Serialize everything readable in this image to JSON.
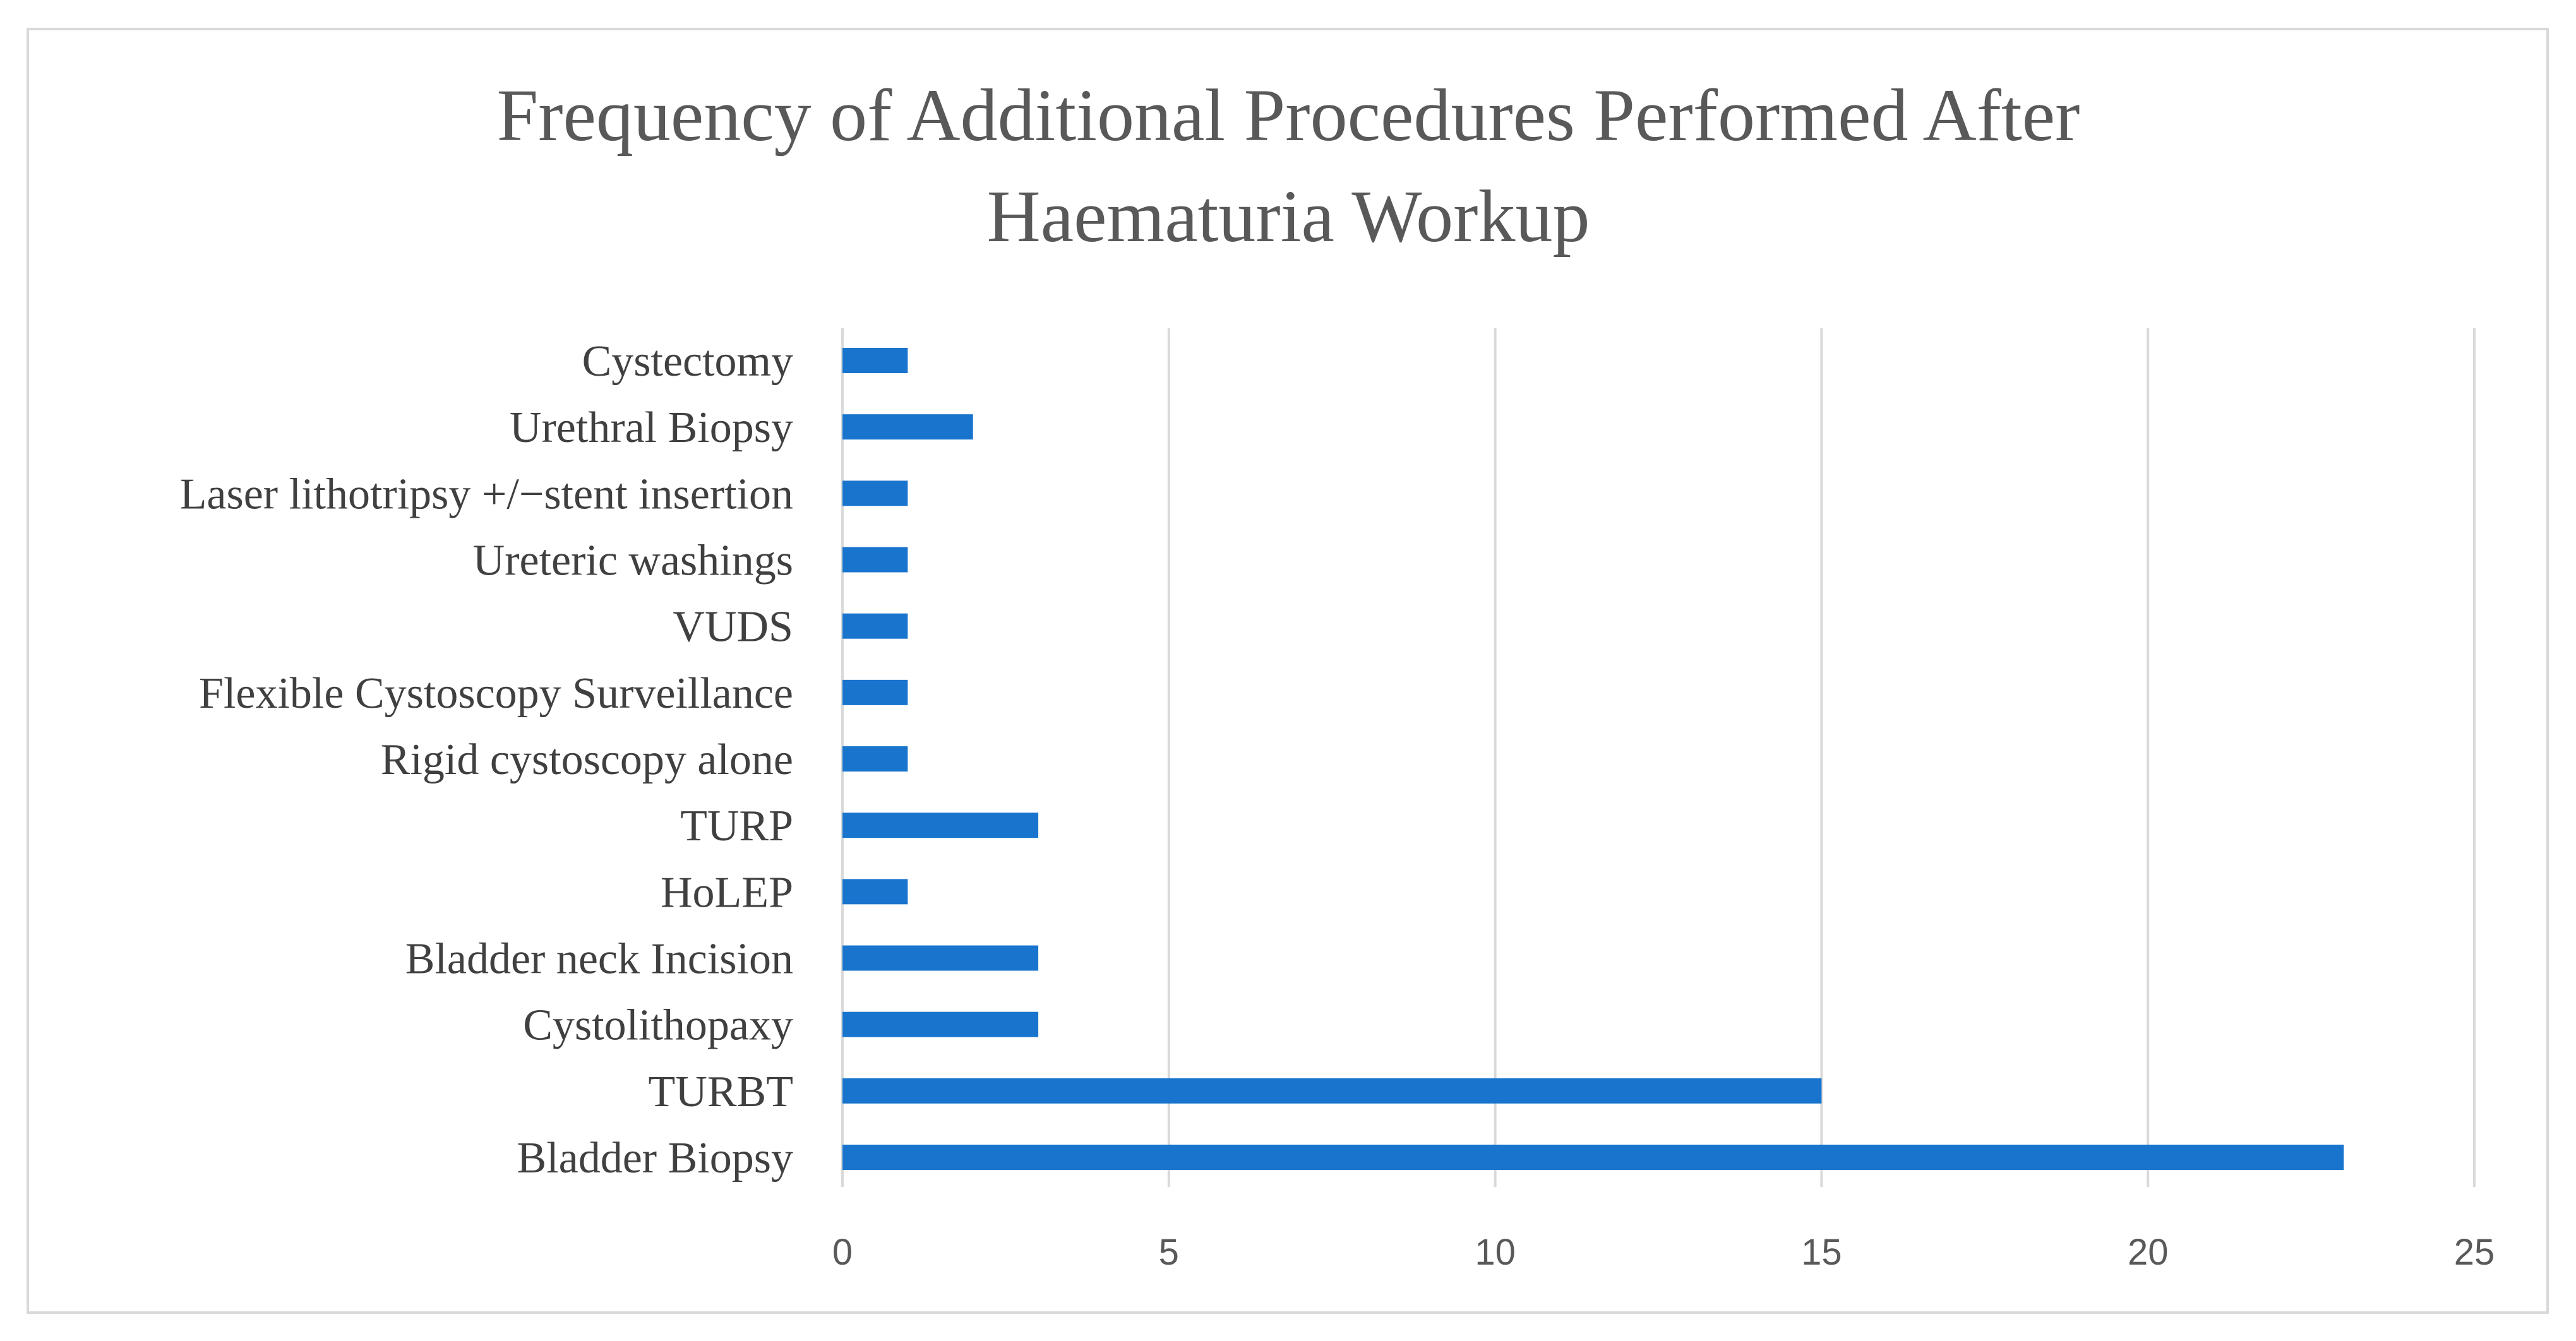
{
  "chart_data": {
    "type": "bar",
    "orientation": "horizontal",
    "title_lines": [
      "Frequency of Additional Procedures Performed After",
      "Haematuria Workup"
    ],
    "categories": [
      "Cystectomy",
      "Urethral Biopsy",
      "Laser lithotripsy +/−stent insertion",
      "Ureteric washings",
      "VUDS",
      "Flexible Cystoscopy Surveillance",
      "Rigid cystoscopy alone",
      "TURP",
      "HoLEP",
      "Bladder neck Incision",
      "Cystolithopaxy",
      "TURBT",
      "Bladder Biopsy"
    ],
    "values": [
      1,
      2,
      1,
      1,
      1,
      1,
      1,
      3,
      1,
      3,
      3,
      15,
      23
    ],
    "xlim": [
      0,
      25
    ],
    "x_ticks": [
      0,
      5,
      10,
      15,
      20,
      25
    ],
    "grid": true,
    "bar_color": "#1874cd"
  }
}
